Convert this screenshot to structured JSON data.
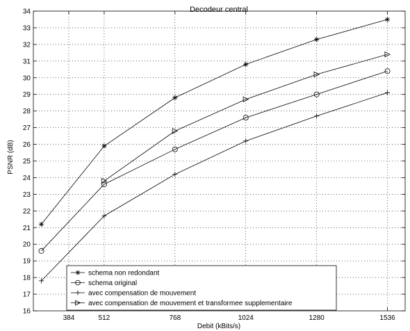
{
  "chart_data": {
    "type": "line",
    "title": "Decodeur central",
    "xlabel": "Debit (kBits/s)",
    "ylabel": "PSNR (dB)",
    "xlim": [
      256,
      1600
    ],
    "ylim": [
      16,
      34
    ],
    "x_ticks": [
      384,
      512,
      768,
      1024,
      1280,
      1536
    ],
    "y_ticks": [
      16,
      17,
      18,
      19,
      20,
      21,
      22,
      23,
      24,
      25,
      26,
      27,
      28,
      29,
      30,
      31,
      32,
      33,
      34
    ],
    "grid": true,
    "legend_position": "bottom-left",
    "series": [
      {
        "name": "schema non redondant",
        "marker": "star",
        "x": [
          285,
          512,
          768,
          1024,
          1280,
          1536
        ],
        "y": [
          21.2,
          25.9,
          28.8,
          30.8,
          32.3,
          33.5
        ]
      },
      {
        "name": "schema original",
        "marker": "circle",
        "x": [
          285,
          512,
          768,
          1024,
          1280,
          1536
        ],
        "y": [
          19.6,
          23.6,
          25.7,
          27.6,
          29.0,
          30.4
        ]
      },
      {
        "name": "avec compensation de mouvement",
        "marker": "plus",
        "x": [
          285,
          512,
          768,
          1024,
          1280,
          1536
        ],
        "y": [
          17.8,
          21.7,
          24.2,
          26.2,
          27.7,
          29.1
        ]
      },
      {
        "name": "avec compensation de mouvement et transformee supplementaire",
        "marker": "triangle-right",
        "x": [
          512,
          768,
          1024,
          1280,
          1536
        ],
        "y": [
          23.8,
          26.8,
          28.7,
          30.2,
          31.4
        ]
      }
    ]
  }
}
